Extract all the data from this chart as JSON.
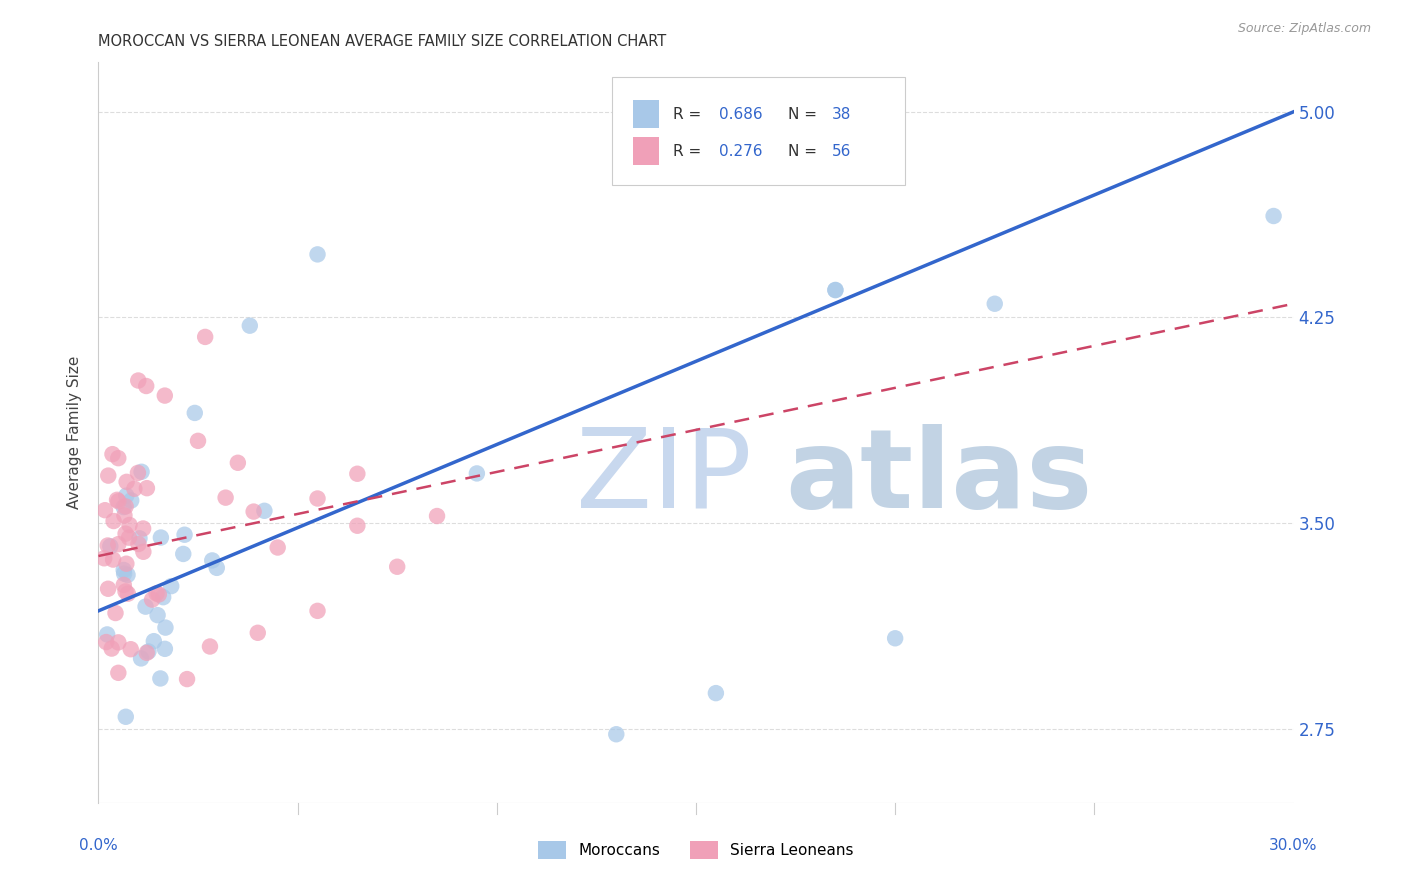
{
  "title": "MOROCCAN VS SIERRA LEONEAN AVERAGE FAMILY SIZE CORRELATION CHART",
  "source": "Source: ZipAtlas.com",
  "ylabel": "Average Family Size",
  "moroccans_color": "#a8c8e8",
  "sierra_color": "#f0a0b8",
  "trend_blue": "#3366cc",
  "trend_pink": "#cc4466",
  "legend_text_color": "#3366cc",
  "tick_color": "#3366cc",
  "grid_color": "#dddddd",
  "title_color": "#333333",
  "source_color": "#999999",
  "background_color": "#ffffff",
  "xlim": [
    0.0,
    0.3
  ],
  "ylim": [
    2.48,
    5.18
  ],
  "yticks": [
    2.75,
    3.5,
    4.25,
    5.0
  ],
  "xticks": [
    0.0,
    0.05,
    0.1,
    0.15,
    0.2,
    0.25,
    0.3
  ],
  "blue_line_x0": 0.0,
  "blue_line_y0": 3.18,
  "blue_line_x1": 0.3,
  "blue_line_y1": 5.0,
  "pink_line_x0": 0.0,
  "pink_line_y0": 3.38,
  "pink_line_x1": 0.3,
  "pink_line_y1": 4.3,
  "bottom_labels": [
    "Moroccans",
    "Sierra Leoneans"
  ]
}
